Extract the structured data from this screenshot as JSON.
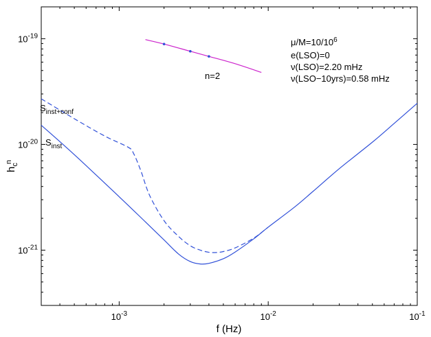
{
  "chart_data": {
    "type": "line",
    "xscale": "log",
    "yscale": "log",
    "xlim": [
      0.0003,
      0.1
    ],
    "ylim": [
      3e-22,
      2e-19
    ],
    "xlabel": "f (Hz)",
    "ylabel_main": "h",
    "ylabel_sub": "c",
    "ylabel_sup": "n",
    "xticks": [
      {
        "value": 0.001,
        "mantissa": "10",
        "exp": "-3"
      },
      {
        "value": 0.01,
        "mantissa": "10",
        "exp": "-2"
      },
      {
        "value": 0.1,
        "mantissa": "10",
        "exp": "-1"
      }
    ],
    "yticks": [
      {
        "value": 1e-21,
        "mantissa": "10",
        "exp": "-21"
      },
      {
        "value": 1e-20,
        "mantissa": "10",
        "exp": "-20"
      },
      {
        "value": 1e-19,
        "mantissa": "10",
        "exp": "-19"
      }
    ],
    "series": [
      {
        "name": "S_inst",
        "label_main": "S",
        "label_sub": "inst",
        "color": "#3050d8",
        "dash": "solid",
        "x": [
          0.0003,
          0.0005,
          0.001,
          0.0015,
          0.002,
          0.0025,
          0.003,
          0.0035,
          0.004,
          0.005,
          0.006,
          0.008,
          0.01,
          0.015,
          0.02,
          0.03,
          0.05,
          0.07,
          0.1
        ],
        "y": [
          1.52e-20,
          8e-21,
          3.2e-21,
          1.85e-21,
          1.25e-21,
          9.2e-22,
          7.8e-22,
          7.4e-22,
          7.5e-22,
          8.3e-22,
          9.6e-22,
          1.28e-21,
          1.65e-21,
          2.55e-21,
          3.6e-21,
          5.9e-21,
          1.05e-20,
          1.58e-20,
          2.45e-20
        ]
      },
      {
        "name": "S_inst+conf",
        "label_main": "S",
        "label_sub": "inst+conf",
        "color": "#3050d8",
        "dash": "dashed",
        "x": [
          0.0003,
          0.0005,
          0.0008,
          0.00115,
          0.00125,
          0.0014,
          0.0016,
          0.002,
          0.0025,
          0.003,
          0.0035,
          0.004,
          0.0045,
          0.005,
          0.006,
          0.008,
          0.01
        ],
        "y": [
          2.7e-20,
          1.75e-20,
          1.2e-20,
          9.4e-21,
          8.2e-21,
          5.6e-21,
          3.3e-21,
          1.9e-21,
          1.35e-21,
          1.1e-21,
          1e-21,
          9.55e-22,
          9.5e-22,
          9.7e-22,
          1.05e-21,
          1.3e-21,
          1.65e-21
        ]
      },
      {
        "name": "n=2",
        "label": "n=2",
        "color": "#cc22cc",
        "dash": "solid",
        "x": [
          0.0015,
          0.002,
          0.003,
          0.004,
          0.006,
          0.009
        ],
        "y": [
          9.8e-20,
          8.9e-20,
          7.6e-20,
          6.8e-20,
          5.8e-20,
          4.8e-20
        ],
        "markers_x": [
          0.002,
          0.003,
          0.004
        ],
        "markers_y": [
          8.9e-20,
          7.6e-20,
          6.8e-20
        ]
      }
    ],
    "annotations": {
      "line1_prefix": "μ/M=10/10",
      "line1_sup": "6",
      "line2": "e(LSO)=0",
      "line3": "ν(LSO)=2.20 mHz",
      "line4": "ν(LSO−10yrs)=0.58 mHz"
    }
  }
}
